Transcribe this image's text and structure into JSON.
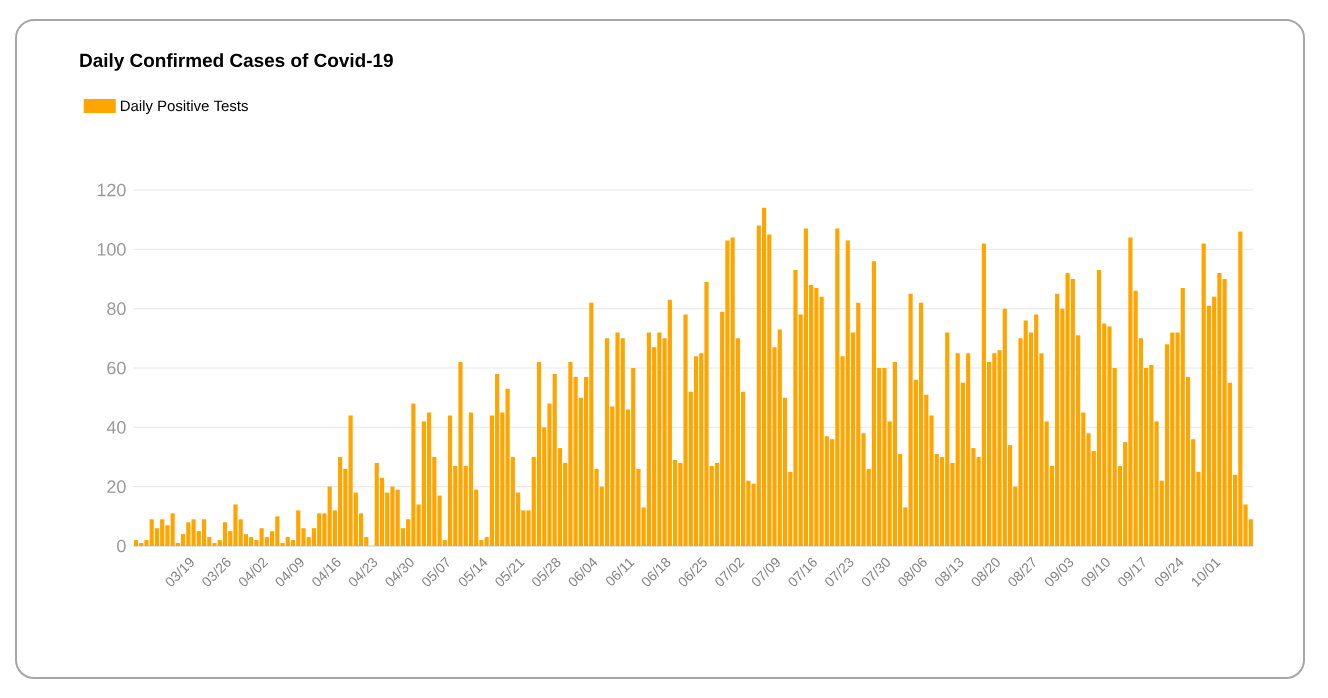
{
  "chart_data": {
    "type": "bar",
    "title": "Daily Confirmed Cases of Covid-19",
    "categories": [
      null,
      null,
      null,
      null,
      null,
      null,
      null,
      null,
      null,
      null,
      "03/19",
      null,
      null,
      null,
      null,
      null,
      null,
      "03/26",
      null,
      null,
      null,
      null,
      null,
      null,
      "04/02",
      null,
      null,
      null,
      null,
      null,
      null,
      "04/09",
      null,
      null,
      null,
      null,
      null,
      null,
      "04/16",
      null,
      null,
      null,
      null,
      null,
      null,
      "04/23",
      null,
      null,
      null,
      null,
      null,
      null,
      "04/30",
      null,
      null,
      null,
      null,
      null,
      null,
      "05/07",
      null,
      null,
      null,
      null,
      null,
      null,
      "05/14",
      null,
      null,
      null,
      null,
      null,
      null,
      "05/21",
      null,
      null,
      null,
      null,
      null,
      null,
      "05/28",
      null,
      null,
      null,
      null,
      null,
      null,
      "06/04",
      null,
      null,
      null,
      null,
      null,
      null,
      "06/11",
      null,
      null,
      null,
      null,
      null,
      null,
      "06/18",
      null,
      null,
      null,
      null,
      null,
      null,
      "06/25",
      null,
      null,
      null,
      null,
      null,
      null,
      "07/02",
      null,
      null,
      null,
      null,
      null,
      null,
      "07/09",
      null,
      null,
      null,
      null,
      null,
      null,
      "07/16",
      null,
      null,
      null,
      null,
      null,
      null,
      "07/23",
      null,
      null,
      null,
      null,
      null,
      null,
      "07/30",
      null,
      null,
      null,
      null,
      null,
      null,
      "08/06",
      null,
      null,
      null,
      null,
      null,
      null,
      "08/13",
      null,
      null,
      null,
      null,
      null,
      null,
      "08/20",
      null,
      null,
      null,
      null,
      null,
      null,
      "08/27",
      null,
      null,
      null,
      null,
      null,
      null,
      "09/03",
      null,
      null,
      null,
      null,
      null,
      null,
      "09/10",
      null,
      null,
      null,
      null,
      null,
      null,
      "09/17",
      null,
      null,
      null,
      null,
      null,
      null,
      "09/24",
      null,
      null,
      null,
      null,
      null,
      null,
      "10/01",
      null,
      null,
      null,
      null,
      null,
      null,
      null
    ],
    "series": [
      {
        "name": "Daily Positive Tests",
        "color": "#ffa500",
        "values": [
          2,
          1,
          2,
          9,
          6,
          9,
          7,
          11,
          1,
          4,
          8,
          9,
          5,
          9,
          3,
          1,
          2,
          8,
          5,
          14,
          9,
          4,
          3,
          2,
          6,
          3,
          5,
          10,
          1,
          3,
          2,
          12,
          6,
          3,
          6,
          11,
          11,
          20,
          12,
          30,
          26,
          44,
          18,
          11,
          3,
          0,
          28,
          23,
          18,
          20,
          19,
          6,
          9,
          48,
          14,
          42,
          45,
          30,
          17,
          2,
          44,
          27,
          62,
          27,
          45,
          19,
          2,
          3,
          44,
          58,
          45,
          53,
          30,
          18,
          12,
          12,
          30,
          62,
          40,
          48,
          58,
          33,
          28,
          62,
          57,
          50,
          57,
          82,
          26,
          20,
          70,
          47,
          72,
          70,
          46,
          60,
          26,
          13,
          72,
          67,
          72,
          70,
          83,
          29,
          28,
          78,
          52,
          64,
          65,
          89,
          27,
          28,
          79,
          103,
          104,
          70,
          52,
          22,
          21,
          108,
          114,
          105,
          67,
          73,
          50,
          25,
          93,
          78,
          107,
          88,
          87,
          84,
          37,
          36,
          107,
          64,
          103,
          72,
          82,
          38,
          26,
          96,
          60,
          60,
          42,
          62,
          31,
          13,
          85,
          56,
          82,
          51,
          44,
          31,
          30,
          72,
          28,
          65,
          55,
          65,
          33,
          30,
          102,
          62,
          65,
          66,
          80,
          34,
          20,
          70,
          76,
          72,
          78,
          65,
          42,
          27,
          85,
          80,
          92,
          90,
          71,
          45,
          38,
          32,
          93,
          75,
          74,
          60,
          27,
          35,
          104,
          86,
          70,
          60,
          61,
          42,
          22,
          68,
          72,
          72,
          87,
          57,
          36,
          25,
          102,
          81,
          84,
          92,
          90,
          55,
          24,
          106,
          14,
          9
        ]
      }
    ],
    "ylim": [
      0,
      120
    ],
    "yticks": [
      0,
      20,
      40,
      60,
      80,
      100,
      120
    ],
    "grid": "y",
    "legend": "top left"
  }
}
